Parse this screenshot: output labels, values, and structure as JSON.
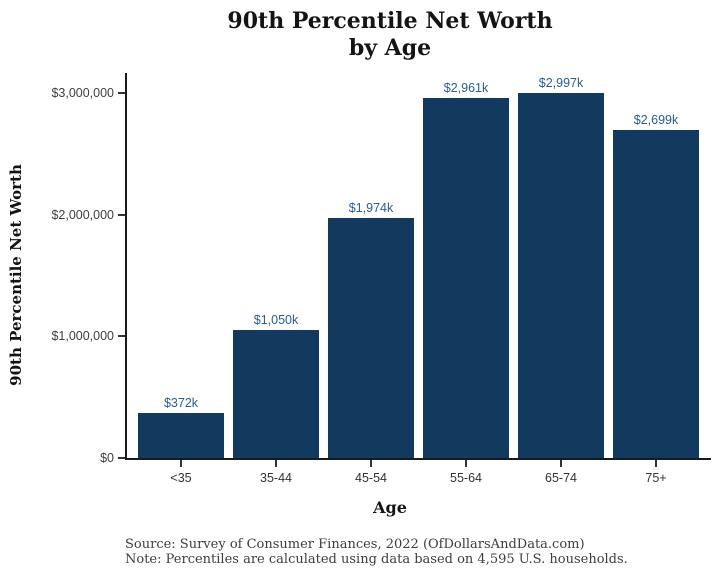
{
  "figure": {
    "title_line1": "90th Percentile Net Worth",
    "title_line2": "by Age",
    "y_axis_title": "90th Percentile Net Worth",
    "x_axis_title": "Age",
    "source_line": "Source:  Survey of Consumer Finances, 2022 (OfDollarsAndData.com)",
    "note_line": "Note: Percentiles are calculated using data based on 4,595 U.S. households."
  },
  "colors": {
    "bar_fill": "#123A5E",
    "bar_label_text": "#2C5C8E",
    "axis_line": "#1a1a1a",
    "tick_label_text": "#404040",
    "title_text": "#141414"
  },
  "chart_data": {
    "type": "bar",
    "title": "90th Percentile Net Worth by Age",
    "xlabel": "Age",
    "ylabel": "90th Percentile Net Worth",
    "categories": [
      "<35",
      "35-44",
      "45-54",
      "55-64",
      "65-74",
      "75+"
    ],
    "values": [
      372000,
      1050000,
      1974000,
      2961000,
      2997000,
      2699000
    ],
    "bar_labels": [
      "$372k",
      "$1,050k",
      "$1,974k",
      "$2,961k",
      "$2,997k",
      "$2,699k"
    ],
    "y_ticks": [
      {
        "value": 0,
        "label": "$0"
      },
      {
        "value": 1000000,
        "label": "$1,000,000"
      },
      {
        "value": 2000000,
        "label": "$2,000,000"
      },
      {
        "value": 3000000,
        "label": "$3,000,000"
      }
    ],
    "ylim": [
      0,
      3160000
    ],
    "grid": false,
    "legend": false,
    "caption": [
      "Source:  Survey of Consumer Finances, 2022 (OfDollarsAndData.com)",
      "Note: Percentiles are calculated using data based on 4,595 U.S. households."
    ]
  }
}
